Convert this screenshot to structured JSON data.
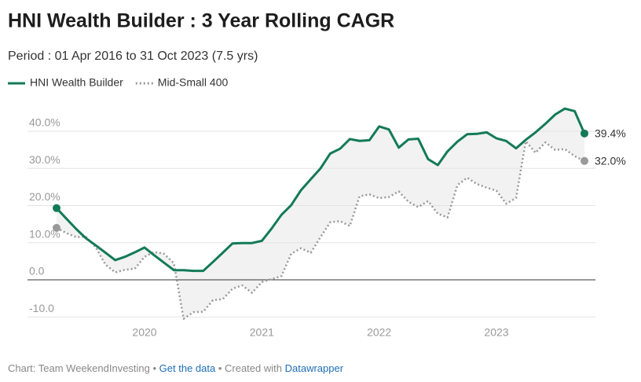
{
  "chart_data": {
    "type": "line",
    "title": "HNI Wealth Builder : 3 Year Rolling CAGR",
    "subtitle": "Period : 01 Apr 2016 to 31 Oct 2023 (7.5 yrs)",
    "x": [
      2019.25,
      2019.333,
      2019.417,
      2019.5,
      2019.583,
      2019.667,
      2019.75,
      2019.833,
      2019.917,
      2020,
      2020.083,
      2020.167,
      2020.25,
      2020.333,
      2020.417,
      2020.5,
      2020.583,
      2020.667,
      2020.75,
      2020.833,
      2020.917,
      2021,
      2021.083,
      2021.167,
      2021.25,
      2021.333,
      2021.417,
      2021.5,
      2021.583,
      2021.667,
      2021.75,
      2021.833,
      2021.917,
      2022,
      2022.083,
      2022.167,
      2022.25,
      2022.333,
      2022.417,
      2022.5,
      2022.583,
      2022.667,
      2022.75,
      2022.833,
      2022.917,
      2023,
      2023.083,
      2023.167,
      2023.25,
      2023.333,
      2023.417,
      2023.5,
      2023.583,
      2023.667,
      2023.75
    ],
    "series": [
      {
        "name": "HNI Wealth Builder",
        "color": "#137a58",
        "dash": false,
        "values": [
          19.3,
          16.5,
          13.7,
          11.2,
          9.3,
          7.3,
          5.3,
          6.2,
          7.4,
          8.7,
          6.6,
          4.6,
          2.6,
          2.6,
          2.4,
          2.4,
          4.8,
          7.3,
          9.8,
          9.9,
          9.9,
          10.5,
          13.8,
          17.5,
          20.1,
          24.1,
          27.1,
          30.0,
          34.0,
          35.3,
          37.9,
          37.4,
          37.6,
          41.3,
          40.5,
          35.6,
          37.8,
          38.0,
          32.5,
          30.9,
          34.6,
          37.2,
          39.2,
          39.3,
          39.7,
          38.1,
          37.4,
          35.4,
          37.7,
          39.7,
          42.0,
          44.5,
          46.1,
          45.4,
          39.4
        ],
        "value_labels": [
          null,
          null,
          null,
          null,
          null,
          null,
          null,
          null,
          null,
          null,
          null,
          null,
          null,
          null,
          null,
          null,
          null,
          null,
          null,
          null,
          null,
          null,
          null,
          null,
          null,
          null,
          null,
          null,
          null,
          null,
          null,
          null,
          null,
          null,
          null,
          null,
          null,
          null,
          null,
          null,
          null,
          null,
          null,
          null,
          null,
          null,
          null,
          null,
          null,
          null,
          null,
          null,
          null,
          null,
          "39.4%"
        ]
      },
      {
        "name": "Mid-Small 400",
        "color": "#999999",
        "dash": true,
        "values": [
          14.0,
          12.6,
          11.5,
          11.6,
          8.8,
          4.1,
          2.0,
          2.7,
          3.0,
          6.2,
          7.5,
          7.0,
          4.5,
          -10.5,
          -8.7,
          -8.6,
          -5.5,
          -5.2,
          -2.4,
          -1.5,
          -3.5,
          -0.6,
          0.2,
          1.0,
          7.0,
          8.5,
          7.3,
          11.5,
          15.5,
          15.8,
          14.5,
          22.5,
          23.0,
          22.0,
          22.3,
          23.8,
          21.0,
          19.6,
          21.2,
          17.8,
          16.8,
          25.5,
          27.5,
          25.8,
          24.8,
          24.0,
          20.5,
          22.0,
          37.3,
          34.2,
          37.0,
          35.0,
          35.2,
          33.3,
          32.0
        ],
        "value_labels": [
          null,
          null,
          null,
          null,
          null,
          null,
          null,
          null,
          null,
          null,
          null,
          null,
          null,
          null,
          null,
          null,
          null,
          null,
          null,
          null,
          null,
          null,
          null,
          null,
          null,
          null,
          null,
          null,
          null,
          null,
          null,
          null,
          null,
          null,
          null,
          null,
          null,
          null,
          null,
          null,
          null,
          null,
          null,
          null,
          null,
          null,
          null,
          null,
          null,
          null,
          null,
          null,
          null,
          null,
          "32.0%"
        ]
      }
    ],
    "xlim": [
      2019.25,
      2023.75
    ],
    "xticks": [
      2020,
      2021,
      2022,
      2023
    ],
    "ylim": [
      -12,
      48
    ],
    "yticks": [
      {
        "value": 40,
        "label": "40.0%"
      },
      {
        "value": 30,
        "label": "30.0%"
      },
      {
        "value": 20,
        "label": "20.0%"
      },
      {
        "value": 10,
        "label": "10.0%"
      },
      {
        "value": 0,
        "label": "0.0"
      },
      {
        "value": -10,
        "label": "-10.0"
      }
    ],
    "grid": true,
    "fill_between": true,
    "footer": [
      "Chart: Team WeekendInvesting • ",
      "Get the data",
      " • Created with ",
      "Datawrapper"
    ]
  }
}
